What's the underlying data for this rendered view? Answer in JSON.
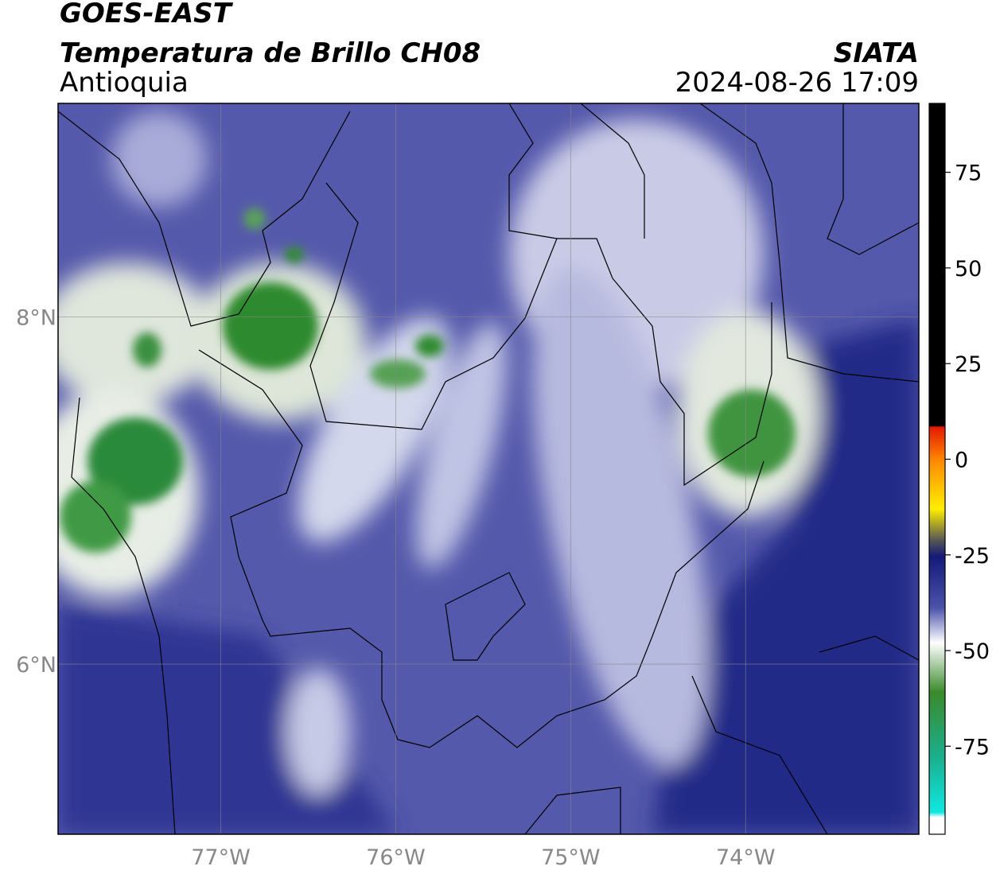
{
  "header": {
    "title": "GOES-EAST",
    "subtitle": "Temperatura de Brillo CH08",
    "source": "SIATA",
    "region": "Antioquia",
    "timestamp": "2024-08-26 17:09"
  },
  "map": {
    "xlim": [
      -77.93,
      -73.01
    ],
    "ylim": [
      5.02,
      9.23
    ],
    "xticks": [
      {
        "value": -77,
        "label": "77°W"
      },
      {
        "value": -76,
        "label": "76°W"
      },
      {
        "value": -75,
        "label": "75°W"
      },
      {
        "value": -74,
        "label": "74°W"
      }
    ],
    "yticks": [
      {
        "value": 6,
        "label": "6°N"
      },
      {
        "value": 8,
        "label": "8°N"
      }
    ],
    "grid": true
  },
  "colorbar": {
    "lim": [
      -98,
      93
    ],
    "ticks": [
      -75,
      -50,
      -25,
      0,
      25,
      50,
      75
    ]
  }
}
